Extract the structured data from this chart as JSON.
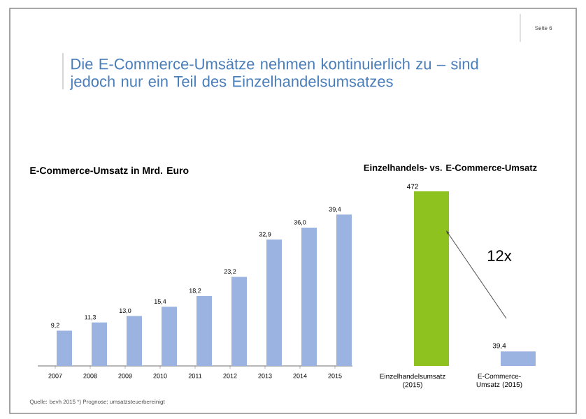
{
  "chart_data": [
    {
      "type": "bar",
      "title": "Die E-Commerce-Umsätze nehmen kontinuierlich zu – sind jedoch nur ein Teil des Einzelhandelsumsatzes",
      "subtitle": "E-Commerce-Umsatz in Mrd. Euro",
      "categories": [
        "2007",
        "2008",
        "2009",
        "2010",
        "2011",
        "2012",
        "2013",
        "2014",
        "2015"
      ],
      "values": [
        9.2,
        11.3,
        13.0,
        15.4,
        18.2,
        23.2,
        32.9,
        36.0,
        39.4
      ],
      "value_labels": [
        "9,2",
        "11,3",
        "13,0",
        "15,4",
        "18,2",
        "23,2",
        "32,9",
        "36,0",
        "39,4"
      ],
      "color": "#9ab3e0",
      "annotations": [
        "Seite 6",
        "Quelle: bevh 2015   *) Prognose; umsatzsteuerbereinigt"
      ]
    },
    {
      "type": "bar",
      "title": "Einzelhandels- vs. E-Commerce-Umsatz",
      "categories": [
        "Einzelhandelsumsatz (2015)",
        "E-Commerce-Umsatz (2015)"
      ],
      "values": [
        472,
        39.4
      ],
      "value_labels": [
        "472",
        "39,4"
      ],
      "colors": [
        "#8dc21f",
        "#9ab3e0"
      ],
      "annotations": [
        "12x"
      ]
    }
  ]
}
